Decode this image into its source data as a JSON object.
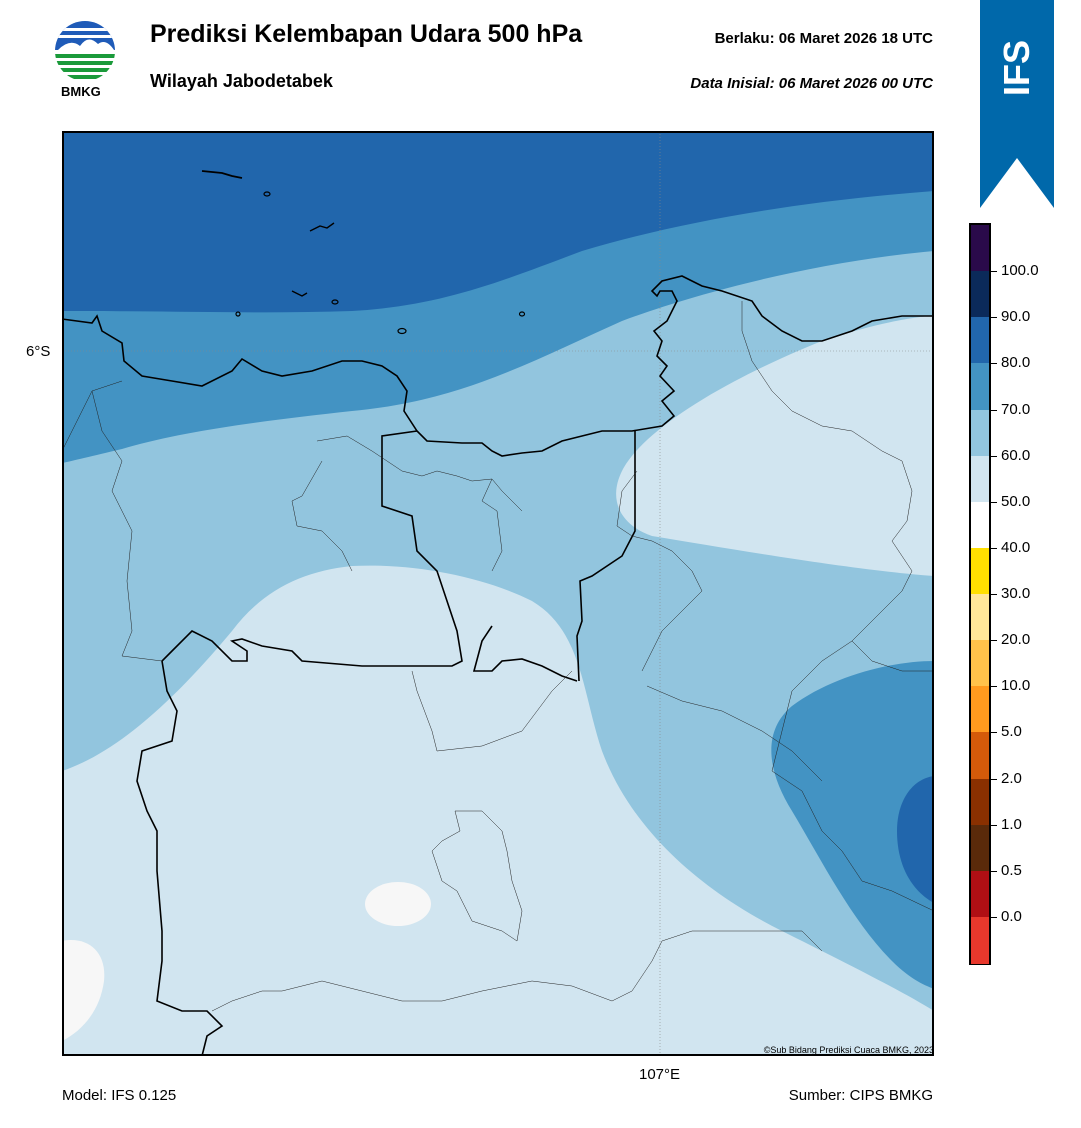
{
  "logo": {
    "label": "BMKG"
  },
  "header": {
    "title": "Prediksi Kelembapan Udara 500 hPa",
    "subtitle": "Wilayah Jabodetabek",
    "valid_time": "Berlaku:  06 Maret 2026 18 UTC",
    "initial_data": "Data Inisial:  06 Maret 2026 00 UTC"
  },
  "ribbon": {
    "label": "IFS",
    "color": "#0068aa"
  },
  "map": {
    "lat_label": "6°S",
    "lon_label": "107°E",
    "copyright": "©Sub Bidang Prediksi Cuaca BMKG, 2023"
  },
  "colorbar": {
    "levels": [
      {
        "label": "100.0",
        "color": "#2a0a4a"
      },
      {
        "label": "90.0",
        "color": "#0b2a5a"
      },
      {
        "label": "80.0",
        "color": "#2166ac"
      },
      {
        "label": "70.0",
        "color": "#4393c3"
      },
      {
        "label": "60.0",
        "color": "#92c5de"
      },
      {
        "label": "50.0",
        "color": "#d1e5f0"
      },
      {
        "label": "40.0",
        "color": "#ffffff"
      },
      {
        "label": "30.0",
        "color": "#ffe000"
      },
      {
        "label": "20.0",
        "color": "#ffe799"
      },
      {
        "label": "10.0",
        "color": "#ffc24a"
      },
      {
        "label": "5.0",
        "color": "#ff9a1e"
      },
      {
        "label": "2.0",
        "color": "#d45a0a"
      },
      {
        "label": "1.0",
        "color": "#8a3000"
      },
      {
        "label": "0.5",
        "color": "#5a2a0a"
      },
      {
        "label": "0.0",
        "color": "#b00f14"
      },
      {
        "label": "",
        "color": "#e8382c"
      }
    ]
  },
  "footer": {
    "model": "Model: IFS 0.125",
    "source": "Sumber: CIPS BMKG"
  }
}
